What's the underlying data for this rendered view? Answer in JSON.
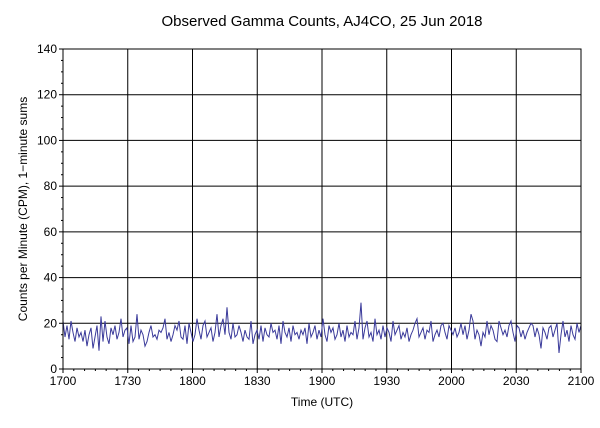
{
  "chart_data": {
    "type": "line",
    "title": "Observed Gamma Counts, AJ4CO, 25 Jun 2018",
    "xlabel": "Time (UTC)",
    "ylabel": "Counts per Minute (CPM), 1−minute sums",
    "ylim": [
      0,
      140
    ],
    "xlim_minutes": [
      0,
      240
    ],
    "yticks": [
      0,
      20,
      40,
      60,
      80,
      100,
      120,
      140
    ],
    "xticks": [
      {
        "minute": 0,
        "label": "1700"
      },
      {
        "minute": 30,
        "label": "1730"
      },
      {
        "minute": 60,
        "label": "1800"
      },
      {
        "minute": 90,
        "label": "1830"
      },
      {
        "minute": 120,
        "label": "1900"
      },
      {
        "minute": 150,
        "label": "1930"
      },
      {
        "minute": 180,
        "label": "2000"
      },
      {
        "minute": 210,
        "label": "2030"
      },
      {
        "minute": 240,
        "label": "2100"
      }
    ],
    "grid": true,
    "line_color": "#3a3a9a",
    "grid_color": "#000000",
    "series": [
      {
        "values": [
          21,
          14,
          19,
          13,
          21,
          16,
          12,
          18,
          14,
          16,
          12,
          17,
          10,
          15,
          18,
          9,
          14,
          19,
          8,
          23,
          12,
          21,
          14,
          11,
          18,
          15,
          19,
          13,
          16,
          22,
          14,
          17,
          18,
          11,
          19,
          12,
          14,
          24,
          13,
          17,
          15,
          10,
          12,
          16,
          19,
          14,
          15,
          13,
          17,
          16,
          18,
          22,
          13,
          16,
          12,
          15,
          19,
          17,
          21,
          14,
          13,
          19,
          11,
          20,
          16,
          12,
          15,
          22,
          17,
          13,
          19,
          21,
          14,
          16,
          18,
          12,
          16,
          24,
          14,
          19,
          22,
          15,
          27,
          16,
          13,
          20,
          14,
          15,
          19,
          16,
          12,
          17,
          14,
          13,
          21,
          11,
          15,
          17,
          13,
          19,
          12,
          18,
          15,
          14,
          20,
          16,
          17,
          13,
          19,
          11,
          21,
          16,
          14,
          18,
          12,
          19,
          15,
          16,
          13,
          17,
          15,
          18,
          11,
          20,
          14,
          16,
          19,
          13,
          17,
          14,
          22,
          15,
          12,
          19,
          16,
          18,
          13,
          15,
          20,
          14,
          17,
          12,
          19,
          14,
          16,
          15,
          21,
          13,
          18,
          29,
          13,
          18,
          21,
          14,
          16,
          12,
          22,
          15,
          17,
          13,
          19,
          14,
          18,
          16,
          12,
          21,
          15,
          17,
          19,
          13,
          16,
          14,
          18,
          12,
          15,
          17,
          20,
          22,
          14,
          16,
          18,
          13,
          17,
          16,
          21,
          12,
          15,
          17,
          14,
          19,
          20,
          16,
          13,
          19,
          17,
          15,
          18,
          14,
          16,
          20,
          15,
          19,
          13,
          17,
          24,
          21,
          13,
          17,
          15,
          10,
          16,
          14,
          21,
          15,
          19,
          17,
          13,
          12,
          21,
          18,
          15,
          17,
          14,
          19,
          21,
          16,
          12,
          19,
          18,
          14,
          17,
          13,
          16,
          18,
          20,
          19,
          14,
          18,
          15,
          9,
          18,
          16,
          13,
          18,
          19,
          14,
          17,
          20,
          7,
          15,
          21,
          14,
          17,
          12,
          19,
          15,
          13,
          20,
          16,
          19
        ]
      }
    ]
  }
}
